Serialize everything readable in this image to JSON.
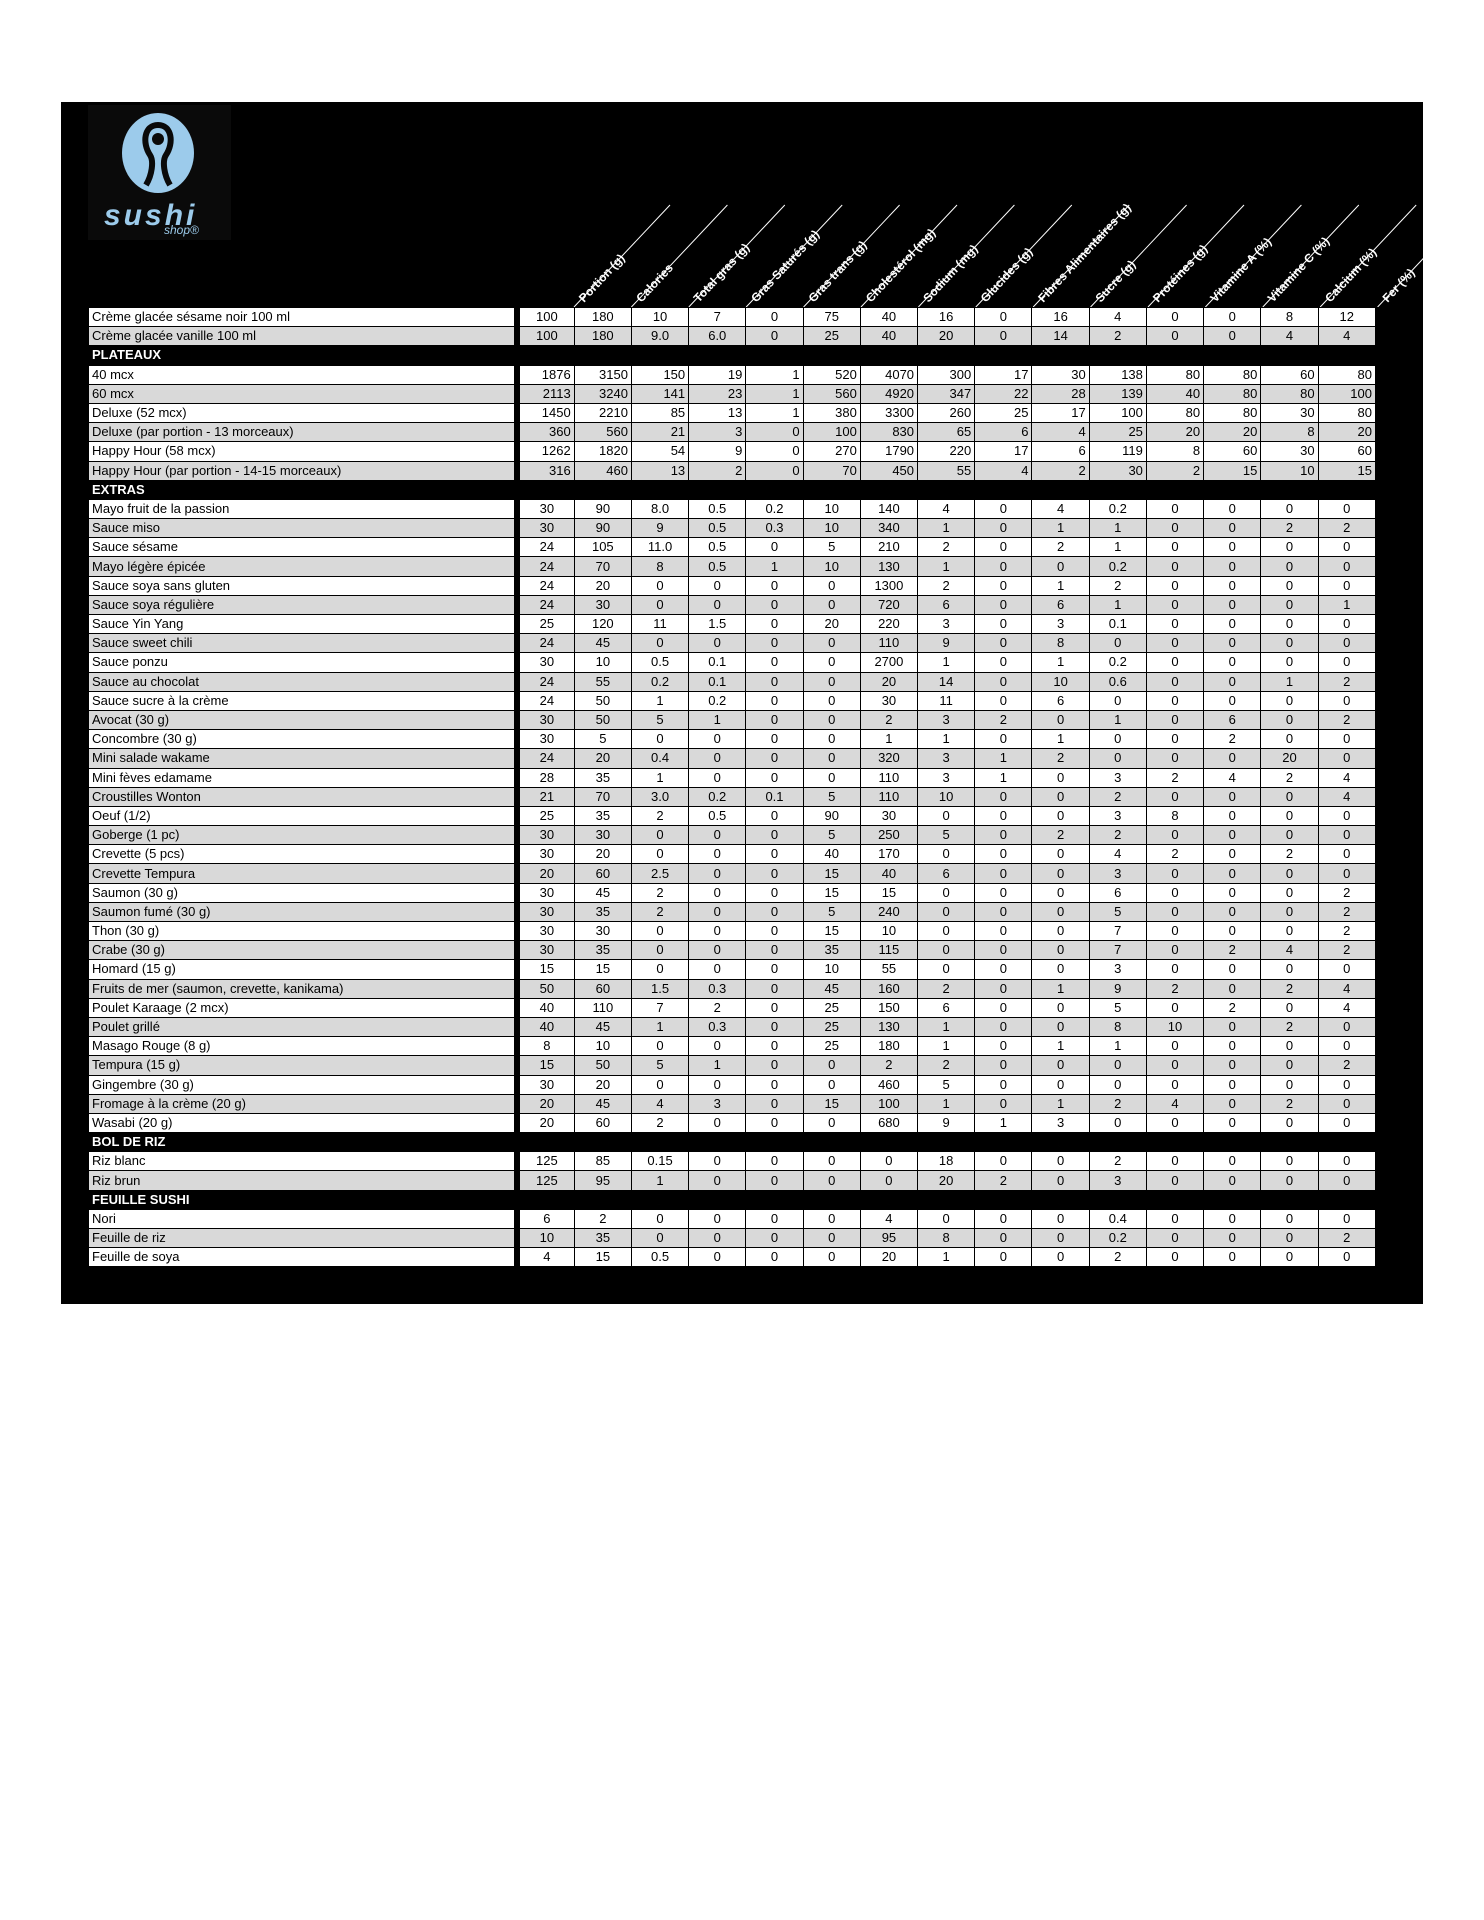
{
  "logo": {
    "brand": "sushi",
    "tagline": "shop®"
  },
  "table": {
    "columns": [
      "Portion (g)",
      "Calories",
      "Total gras (g)",
      "Gras Saturés (g)",
      "Gras trans (g)",
      "Cholestérol (mg)",
      "Sodium (mg)",
      "Glucides (g)",
      "Fibres Alimentaires (g)",
      "Sucre (g)",
      "Protéines (g)",
      "Vitamine A (%)",
      "Vitamine C (%)",
      "Calcium (%)",
      "Fer (%)"
    ],
    "sections": [
      {
        "rows": [
          {
            "name": "Crème glacée sésame noir 100 ml",
            "values": [
              "100",
              "180",
              "10",
              "7",
              "0",
              "75",
              "40",
              "16",
              "0",
              "16",
              "4",
              "0",
              "0",
              "8",
              "12"
            ]
          },
          {
            "name": "Crème glacée vanille 100 ml",
            "values": [
              "100",
              "180",
              "9.0",
              "6.0",
              "0",
              "25",
              "40",
              "20",
              "0",
              "14",
              "2",
              "0",
              "0",
              "4",
              "4"
            ]
          }
        ]
      },
      {
        "title": "PLATEAUX",
        "rows": [
          {
            "name": "40 mcx",
            "values": [
              "1876",
              "3150",
              "150",
              "19",
              "1",
              "520",
              "4070",
              "300",
              "17",
              "30",
              "138",
              "80",
              "80",
              "60",
              "80"
            ]
          },
          {
            "name": "60 mcx",
            "values": [
              "2113",
              "3240",
              "141",
              "23",
              "1",
              "560",
              "4920",
              "347",
              "22",
              "28",
              "139",
              "40",
              "80",
              "80",
              "100"
            ]
          },
          {
            "name": "Deluxe (52 mcx)",
            "values": [
              "1450",
              "2210",
              "85",
              "13",
              "1",
              "380",
              "3300",
              "260",
              "25",
              "17",
              "100",
              "80",
              "80",
              "30",
              "80"
            ]
          },
          {
            "name": "Deluxe (par portion - 13 morceaux)",
            "values": [
              "360",
              "560",
              "21",
              "3",
              "0",
              "100",
              "830",
              "65",
              "6",
              "4",
              "25",
              "20",
              "20",
              "8",
              "20"
            ]
          },
          {
            "name": "Happy Hour (58 mcx)",
            "values": [
              "1262",
              "1820",
              "54",
              "9",
              "0",
              "270",
              "1790",
              "220",
              "17",
              "6",
              "119",
              "8",
              "60",
              "30",
              "60"
            ]
          },
          {
            "name": "Happy Hour (par portion - 14-15 morceaux)",
            "values": [
              "316",
              "460",
              "13",
              "2",
              "0",
              "70",
              "450",
              "55",
              "4",
              "2",
              "30",
              "2",
              "15",
              "10",
              "15"
            ]
          }
        ]
      },
      {
        "title": "EXTRAS",
        "rows": [
          {
            "name": "Mayo fruit de la passion",
            "values": [
              "30",
              "90",
              "8.0",
              "0.5",
              "0.2",
              "10",
              "140",
              "4",
              "0",
              "4",
              "0.2",
              "0",
              "0",
              "0",
              "0"
            ]
          },
          {
            "name": "Sauce miso",
            "values": [
              "30",
              "90",
              "9",
              "0.5",
              "0.3",
              "10",
              "340",
              "1",
              "0",
              "1",
              "1",
              "0",
              "0",
              "2",
              "2"
            ]
          },
          {
            "name": "Sauce sésame",
            "values": [
              "24",
              "105",
              "11.0",
              "0.5",
              "0",
              "5",
              "210",
              "2",
              "0",
              "2",
              "1",
              "0",
              "0",
              "0",
              "0"
            ]
          },
          {
            "name": "Mayo légère épicée",
            "values": [
              "24",
              "70",
              "8",
              "0.5",
              "1",
              "10",
              "130",
              "1",
              "0",
              "0",
              "0.2",
              "0",
              "0",
              "0",
              "0"
            ]
          },
          {
            "name": "Sauce soya sans gluten",
            "values": [
              "24",
              "20",
              "0",
              "0",
              "0",
              "0",
              "1300",
              "2",
              "0",
              "1",
              "2",
              "0",
              "0",
              "0",
              "0"
            ]
          },
          {
            "name": "Sauce soya régulière",
            "values": [
              "24",
              "30",
              "0",
              "0",
              "0",
              "0",
              "720",
              "6",
              "0",
              "6",
              "1",
              "0",
              "0",
              "0",
              "1"
            ]
          },
          {
            "name": "Sauce Yin Yang",
            "values": [
              "25",
              "120",
              "11",
              "1.5",
              "0",
              "20",
              "220",
              "3",
              "0",
              "3",
              "0.1",
              "0",
              "0",
              "0",
              "0"
            ]
          },
          {
            "name": "Sauce sweet chili",
            "values": [
              "24",
              "45",
              "0",
              "0",
              "0",
              "0",
              "110",
              "9",
              "0",
              "8",
              "0",
              "0",
              "0",
              "0",
              "0"
            ]
          },
          {
            "name": "Sauce ponzu",
            "values": [
              "30",
              "10",
              "0.5",
              "0.1",
              "0",
              "0",
              "2700",
              "1",
              "0",
              "1",
              "0.2",
              "0",
              "0",
              "0",
              "0"
            ]
          },
          {
            "name": "Sauce au chocolat",
            "values": [
              "24",
              "55",
              "0.2",
              "0.1",
              "0",
              "0",
              "20",
              "14",
              "0",
              "10",
              "0.6",
              "0",
              "0",
              "1",
              "2"
            ]
          },
          {
            "name": "Sauce sucre à la crème",
            "values": [
              "24",
              "50",
              "1",
              "0.2",
              "0",
              "0",
              "30",
              "11",
              "0",
              "6",
              "0",
              "0",
              "0",
              "0",
              "0"
            ]
          },
          {
            "name": "Avocat (30 g)",
            "values": [
              "30",
              "50",
              "5",
              "1",
              "0",
              "0",
              "2",
              "3",
              "2",
              "0",
              "1",
              "0",
              "6",
              "0",
              "2"
            ]
          },
          {
            "name": "Concombre (30 g)",
            "values": [
              "30",
              "5",
              "0",
              "0",
              "0",
              "0",
              "1",
              "1",
              "0",
              "1",
              "0",
              "0",
              "2",
              "0",
              "0"
            ]
          },
          {
            "name": "Mini salade wakame",
            "values": [
              "24",
              "20",
              "0.4",
              "0",
              "0",
              "0",
              "320",
              "3",
              "1",
              "2",
              "0",
              "0",
              "0",
              "20",
              "0"
            ]
          },
          {
            "name": "Mini fèves edamame",
            "values": [
              "28",
              "35",
              "1",
              "0",
              "0",
              "0",
              "110",
              "3",
              "1",
              "0",
              "3",
              "2",
              "4",
              "2",
              "4"
            ]
          },
          {
            "name": "Croustilles Wonton",
            "values": [
              "21",
              "70",
              "3.0",
              "0.2",
              "0.1",
              "5",
              "110",
              "10",
              "0",
              "0",
              "2",
              "0",
              "0",
              "0",
              "4"
            ]
          },
          {
            "name": "Oeuf (1/2)",
            "values": [
              "25",
              "35",
              "2",
              "0.5",
              "0",
              "90",
              "30",
              "0",
              "0",
              "0",
              "3",
              "8",
              "0",
              "0",
              "0"
            ]
          },
          {
            "name": "Goberge (1 pc)",
            "values": [
              "30",
              "30",
              "0",
              "0",
              "0",
              "5",
              "250",
              "5",
              "0",
              "2",
              "2",
              "0",
              "0",
              "0",
              "0"
            ]
          },
          {
            "name": "Crevette (5 pcs)",
            "values": [
              "30",
              "20",
              "0",
              "0",
              "0",
              "40",
              "170",
              "0",
              "0",
              "0",
              "4",
              "2",
              "0",
              "2",
              "0"
            ]
          },
          {
            "name": "Crevette Tempura",
            "values": [
              "20",
              "60",
              "2.5",
              "0",
              "0",
              "15",
              "40",
              "6",
              "0",
              "0",
              "3",
              "0",
              "0",
              "0",
              "0"
            ]
          },
          {
            "name": "Saumon (30 g)",
            "values": [
              "30",
              "45",
              "2",
              "0",
              "0",
              "15",
              "15",
              "0",
              "0",
              "0",
              "6",
              "0",
              "0",
              "0",
              "2"
            ]
          },
          {
            "name": "Saumon fumé (30 g)",
            "values": [
              "30",
              "35",
              "2",
              "0",
              "0",
              "5",
              "240",
              "0",
              "0",
              "0",
              "5",
              "0",
              "0",
              "0",
              "2"
            ]
          },
          {
            "name": "Thon (30 g)",
            "values": [
              "30",
              "30",
              "0",
              "0",
              "0",
              "15",
              "10",
              "0",
              "0",
              "0",
              "7",
              "0",
              "0",
              "0",
              "2"
            ]
          },
          {
            "name": "Crabe (30 g)",
            "values": [
              "30",
              "35",
              "0",
              "0",
              "0",
              "35",
              "115",
              "0",
              "0",
              "0",
              "7",
              "0",
              "2",
              "4",
              "2"
            ]
          },
          {
            "name": "Homard (15 g)",
            "values": [
              "15",
              "15",
              "0",
              "0",
              "0",
              "10",
              "55",
              "0",
              "0",
              "0",
              "3",
              "0",
              "0",
              "0",
              "0"
            ]
          },
          {
            "name": "Fruits de mer (saumon, crevette, kanikama)",
            "values": [
              "50",
              "60",
              "1.5",
              "0.3",
              "0",
              "45",
              "160",
              "2",
              "0",
              "1",
              "9",
              "2",
              "0",
              "2",
              "4"
            ]
          },
          {
            "name": "Poulet Karaage (2 mcx)",
            "values": [
              "40",
              "110",
              "7",
              "2",
              "0",
              "25",
              "150",
              "6",
              "0",
              "0",
              "5",
              "0",
              "2",
              "0",
              "4"
            ]
          },
          {
            "name": "Poulet grillé",
            "values": [
              "40",
              "45",
              "1",
              "0.3",
              "0",
              "25",
              "130",
              "1",
              "0",
              "0",
              "8",
              "10",
              "0",
              "2",
              "0"
            ]
          },
          {
            "name": "Masago Rouge (8 g)",
            "values": [
              "8",
              "10",
              "0",
              "0",
              "0",
              "25",
              "180",
              "1",
              "0",
              "1",
              "1",
              "0",
              "0",
              "0",
              "0"
            ]
          },
          {
            "name": "Tempura (15 g)",
            "values": [
              "15",
              "50",
              "5",
              "1",
              "0",
              "0",
              "2",
              "2",
              "0",
              "0",
              "0",
              "0",
              "0",
              "0",
              "2"
            ]
          },
          {
            "name": "Gingembre (30 g)",
            "values": [
              "30",
              "20",
              "0",
              "0",
              "0",
              "0",
              "460",
              "5",
              "0",
              "0",
              "0",
              "0",
              "0",
              "0",
              "0"
            ]
          },
          {
            "name": "Fromage à la crème (20 g)",
            "values": [
              "20",
              "45",
              "4",
              "3",
              "0",
              "15",
              "100",
              "1",
              "0",
              "1",
              "2",
              "4",
              "0",
              "2",
              "0"
            ]
          },
          {
            "name": "Wasabi (20 g)",
            "values": [
              "20",
              "60",
              "2",
              "0",
              "0",
              "0",
              "680",
              "9",
              "1",
              "3",
              "0",
              "0",
              "0",
              "0",
              "0"
            ]
          }
        ]
      },
      {
        "title": "BOL DE RIZ",
        "rows": [
          {
            "name": "Riz blanc",
            "values": [
              "125",
              "85",
              "0.15",
              "0",
              "0",
              "0",
              "0",
              "18",
              "0",
              "0",
              "2",
              "0",
              "0",
              "0",
              "0"
            ]
          },
          {
            "name": "Riz brun",
            "values": [
              "125",
              "95",
              "1",
              "0",
              "0",
              "0",
              "0",
              "20",
              "2",
              "0",
              "3",
              "0",
              "0",
              "0",
              "0"
            ]
          }
        ]
      },
      {
        "title": "FEUILLE SUSHI",
        "rows": [
          {
            "name": "Nori",
            "values": [
              "6",
              "2",
              "0",
              "0",
              "0",
              "0",
              "4",
              "0",
              "0",
              "0",
              "0.4",
              "0",
              "0",
              "0",
              "0"
            ]
          },
          {
            "name": "Feuille de riz",
            "values": [
              "10",
              "35",
              "0",
              "0",
              "0",
              "0",
              "95",
              "8",
              "0",
              "0",
              "0.2",
              "0",
              "0",
              "0",
              "2"
            ]
          },
          {
            "name": "Feuille de soya",
            "values": [
              "4",
              "15",
              "0.5",
              "0",
              "0",
              "0",
              "20",
              "1",
              "0",
              "0",
              "2",
              "0",
              "0",
              "0",
              "0"
            ]
          }
        ]
      }
    ]
  }
}
